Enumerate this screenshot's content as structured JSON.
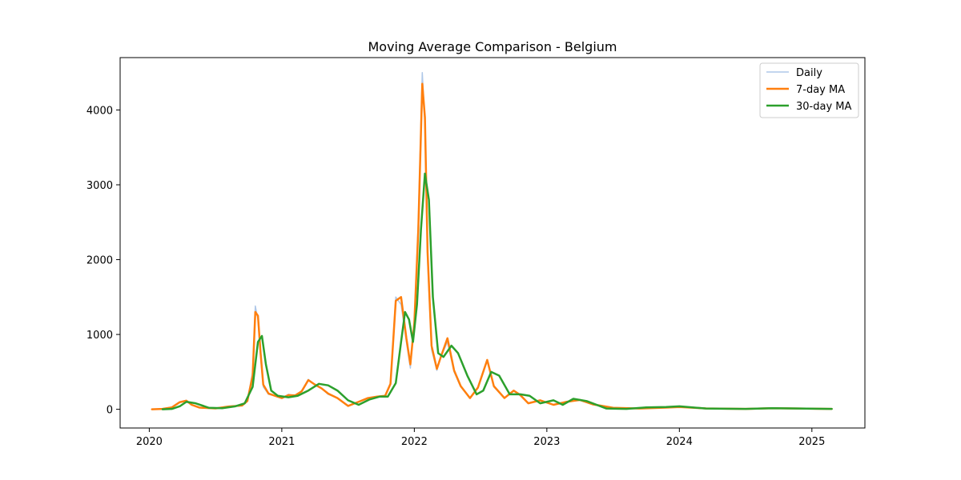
{
  "chart_data": {
    "type": "line",
    "title": "Moving Average Comparison - Belgium",
    "xlabel": "",
    "ylabel": "",
    "x_tick_labels": [
      "2020",
      "2021",
      "2022",
      "2023",
      "2024",
      "2025"
    ],
    "x_ticks": [
      2020.0,
      2021.0,
      2022.0,
      2023.0,
      2024.0,
      2025.0
    ],
    "y_ticks": [
      0,
      1000,
      2000,
      3000,
      4000
    ],
    "y_tick_labels": [
      "0",
      "1000",
      "2000",
      "3000",
      "4000"
    ],
    "xlim": [
      2019.78,
      2025.4
    ],
    "ylim": [
      -250,
      4700
    ],
    "grid": false,
    "legend_position": "upper-right",
    "series": [
      {
        "name": "Daily",
        "color": "#aec7e8",
        "x": [
          2020.02,
          2020.1,
          2020.17,
          2020.23,
          2020.28,
          2020.32,
          2020.38,
          2020.5,
          2020.6,
          2020.7,
          2020.74,
          2020.78,
          2020.8,
          2020.82,
          2020.84,
          2020.86,
          2020.9,
          2020.95,
          2021.0,
          2021.05,
          2021.1,
          2021.15,
          2021.2,
          2021.25,
          2021.3,
          2021.35,
          2021.42,
          2021.5,
          2021.58,
          2021.65,
          2021.72,
          2021.78,
          2021.82,
          2021.86,
          2021.9,
          2021.94,
          2021.97,
          2022.0,
          2022.03,
          2022.06,
          2022.08,
          2022.1,
          2022.13,
          2022.17,
          2022.2,
          2022.25,
          2022.3,
          2022.35,
          2022.42,
          2022.48,
          2022.55,
          2022.6,
          2022.68,
          2022.75,
          2022.8,
          2022.86,
          2022.95,
          2023.05,
          2023.15,
          2023.25,
          2023.35,
          2023.5,
          2023.7,
          2023.9,
          2024.0,
          2024.2,
          2024.5,
          2024.7,
          2024.9,
          2025.15
        ],
        "y": [
          0,
          5,
          30,
          100,
          120,
          60,
          20,
          10,
          40,
          50,
          120,
          500,
          1380,
          1200,
          700,
          300,
          200,
          180,
          150,
          200,
          180,
          250,
          400,
          330,
          280,
          200,
          150,
          40,
          100,
          150,
          170,
          180,
          350,
          1500,
          1400,
          900,
          550,
          1200,
          2500,
          4500,
          3800,
          2000,
          800,
          520,
          700,
          900,
          500,
          300,
          150,
          300,
          650,
          300,
          150,
          250,
          180,
          80,
          120,
          60,
          100,
          120,
          60,
          20,
          10,
          20,
          30,
          10,
          5,
          15,
          10,
          5
        ]
      },
      {
        "name": "7-day MA",
        "color": "#ff7f0e",
        "x": [
          2020.02,
          2020.1,
          2020.17,
          2020.23,
          2020.28,
          2020.32,
          2020.38,
          2020.5,
          2020.6,
          2020.7,
          2020.74,
          2020.78,
          2020.8,
          2020.82,
          2020.84,
          2020.86,
          2020.9,
          2020.95,
          2021.0,
          2021.05,
          2021.1,
          2021.15,
          2021.2,
          2021.25,
          2021.3,
          2021.35,
          2021.42,
          2021.5,
          2021.58,
          2021.65,
          2021.72,
          2021.78,
          2021.82,
          2021.86,
          2021.9,
          2021.94,
          2021.97,
          2022.0,
          2022.03,
          2022.06,
          2022.08,
          2022.1,
          2022.13,
          2022.17,
          2022.2,
          2022.25,
          2022.3,
          2022.35,
          2022.42,
          2022.48,
          2022.55,
          2022.6,
          2022.68,
          2022.75,
          2022.8,
          2022.86,
          2022.95,
          2023.05,
          2023.15,
          2023.25,
          2023.35,
          2023.5,
          2023.7,
          2023.9,
          2024.0,
          2024.2,
          2024.5,
          2024.7,
          2024.9,
          2025.15
        ],
        "y": [
          0,
          5,
          25,
          95,
          115,
          60,
          22,
          12,
          38,
          50,
          110,
          450,
          1300,
          1250,
          750,
          330,
          210,
          180,
          150,
          190,
          185,
          240,
          390,
          330,
          280,
          210,
          150,
          45,
          100,
          150,
          170,
          180,
          340,
          1450,
          1500,
          950,
          600,
          1150,
          2400,
          4350,
          3900,
          2100,
          850,
          540,
          700,
          950,
          520,
          310,
          150,
          290,
          660,
          310,
          150,
          250,
          190,
          80,
          120,
          60,
          100,
          125,
          65,
          20,
          10,
          22,
          30,
          12,
          5,
          15,
          10,
          5
        ]
      },
      {
        "name": "30-day MA",
        "color": "#2ca02c",
        "x": [
          2020.1,
          2020.17,
          2020.23,
          2020.28,
          2020.35,
          2020.45,
          2020.55,
          2020.65,
          2020.72,
          2020.78,
          2020.82,
          2020.85,
          2020.88,
          2020.92,
          2020.97,
          2021.05,
          2021.12,
          2021.2,
          2021.28,
          2021.35,
          2021.42,
          2021.5,
          2021.58,
          2021.66,
          2021.74,
          2021.8,
          2021.86,
          2021.9,
          2021.93,
          2021.96,
          2021.99,
          2022.02,
          2022.05,
          2022.08,
          2022.11,
          2022.14,
          2022.18,
          2022.22,
          2022.28,
          2022.33,
          2022.4,
          2022.47,
          2022.52,
          2022.58,
          2022.64,
          2022.72,
          2022.8,
          2022.87,
          2022.95,
          2023.05,
          2023.12,
          2023.2,
          2023.3,
          2023.45,
          2023.6,
          2023.75,
          2023.9,
          2024.0,
          2024.2,
          2024.5,
          2024.7,
          2024.9,
          2025.15
        ],
        "y": [
          0,
          5,
          40,
          100,
          80,
          20,
          15,
          40,
          80,
          300,
          900,
          980,
          600,
          250,
          180,
          160,
          180,
          250,
          340,
          320,
          250,
          120,
          60,
          130,
          170,
          170,
          350,
          900,
          1300,
          1200,
          900,
          1400,
          2400,
          3150,
          2800,
          1500,
          750,
          700,
          850,
          750,
          450,
          200,
          250,
          500,
          450,
          200,
          200,
          180,
          80,
          120,
          60,
          140,
          110,
          10,
          5,
          25,
          30,
          40,
          10,
          5,
          15,
          10,
          5
        ]
      }
    ]
  }
}
